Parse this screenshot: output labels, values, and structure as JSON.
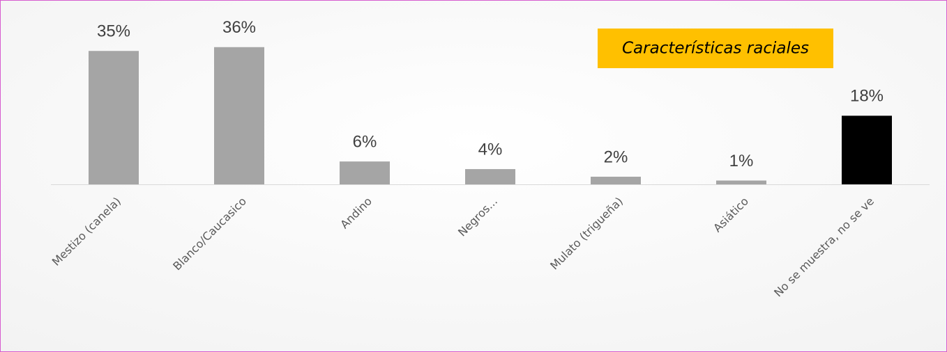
{
  "chart_data": {
    "type": "bar",
    "title": "Características raciales",
    "categories": [
      "Mestizo (canela)",
      "Blanco/Caucasico",
      "Andino",
      "Negros...",
      "Mulato (trigueña)",
      "Asiático",
      "No se muestra, no se ve"
    ],
    "values": [
      35,
      36,
      6,
      4,
      2,
      1,
      18
    ],
    "value_labels": [
      "35%",
      "36%",
      "6%",
      "4%",
      "2%",
      "1%",
      "18%"
    ],
    "colors": [
      "#a5a5a5",
      "#a5a5a5",
      "#a5a5a5",
      "#a5a5a5",
      "#a5a5a5",
      "#a5a5a5",
      "#000000"
    ],
    "ylim": [
      0,
      48
    ]
  }
}
